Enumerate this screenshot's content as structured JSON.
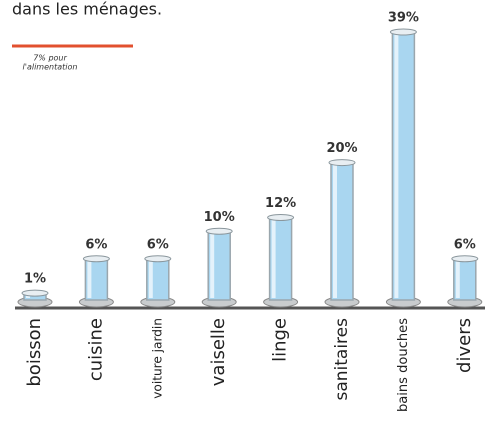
{
  "chart_data": {
    "type": "bar",
    "title": "dans les ménages.",
    "categories": [
      "boisson",
      "cuisine",
      "voiture jardin",
      "vaiselle",
      "linge",
      "sanitaires",
      "bains douches",
      "divers"
    ],
    "values": [
      1,
      6,
      6,
      10,
      12,
      20,
      39,
      6
    ],
    "value_labels": [
      "1%",
      "6%",
      "6%",
      "10%",
      "12%",
      "20%",
      "39%",
      "6%"
    ],
    "color": "#a9d6f0",
    "annotation": {
      "lines": [
        "7% pour",
        "l'alimentation"
      ],
      "color": "#e2502f"
    }
  }
}
